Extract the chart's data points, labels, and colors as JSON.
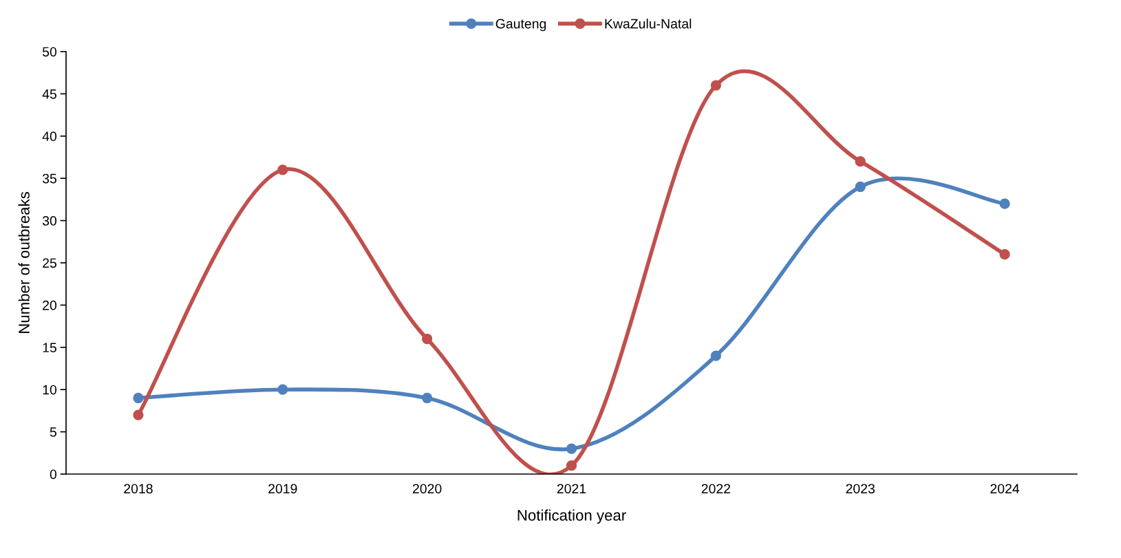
{
  "chart_data": {
    "type": "line",
    "xlabel": "Notification year",
    "ylabel": "Number of outbreaks",
    "categories": [
      "2018",
      "2019",
      "2020",
      "2021",
      "2022",
      "2023",
      "2024"
    ],
    "series": [
      {
        "name": "Gauteng",
        "color": "#4f81bd",
        "values": [
          9,
          10,
          9,
          3,
          14,
          34,
          32
        ]
      },
      {
        "name": "KwaZulu-Natal",
        "color": "#c0504d",
        "values": [
          7,
          36,
          16,
          1,
          46,
          37,
          26
        ]
      }
    ],
    "ylim": [
      0,
      50
    ],
    "yticks": [
      0,
      5,
      10,
      15,
      20,
      25,
      30,
      35,
      40,
      45,
      50
    ],
    "grid": false,
    "legend": "top",
    "marker": "circle",
    "line_style": "solid"
  }
}
